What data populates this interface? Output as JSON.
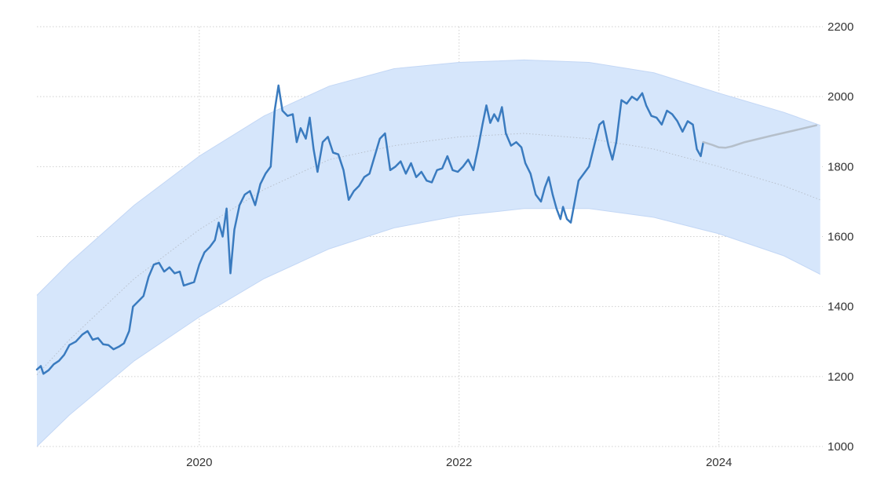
{
  "chart_data": {
    "type": "line",
    "title": "",
    "xlabel": "",
    "ylabel": "",
    "xlim": [
      2018.75,
      2024.8
    ],
    "ylim": [
      1000,
      2200
    ],
    "x_ticks": [
      2020,
      2022,
      2024
    ],
    "y_ticks": [
      1000,
      1200,
      1400,
      1600,
      1800,
      2000,
      2200
    ],
    "y_axis_side": "right",
    "grid": "dotted",
    "legend": "none",
    "colors": {
      "price_line": "#3a7bbf",
      "forecast_line": "#b5bfca",
      "trend_line": "#b8c0cc",
      "band_fill": "#d6e6fb",
      "band_edge": "#c3d7f5",
      "grid": "#d0d0d0"
    },
    "series": [
      {
        "role": "price",
        "points": [
          [
            2018.75,
            1220
          ],
          [
            2018.78,
            1230
          ],
          [
            2018.8,
            1208
          ],
          [
            2018.84,
            1218
          ],
          [
            2018.88,
            1235
          ],
          [
            2018.92,
            1245
          ],
          [
            2018.96,
            1262
          ],
          [
            2019.0,
            1290
          ],
          [
            2019.05,
            1300
          ],
          [
            2019.1,
            1320
          ],
          [
            2019.14,
            1330
          ],
          [
            2019.18,
            1305
          ],
          [
            2019.22,
            1310
          ],
          [
            2019.26,
            1292
          ],
          [
            2019.3,
            1290
          ],
          [
            2019.34,
            1278
          ],
          [
            2019.38,
            1285
          ],
          [
            2019.42,
            1295
          ],
          [
            2019.46,
            1330
          ],
          [
            2019.49,
            1400
          ],
          [
            2019.53,
            1415
          ],
          [
            2019.57,
            1430
          ],
          [
            2019.61,
            1485
          ],
          [
            2019.65,
            1520
          ],
          [
            2019.69,
            1525
          ],
          [
            2019.73,
            1500
          ],
          [
            2019.77,
            1512
          ],
          [
            2019.81,
            1495
          ],
          [
            2019.85,
            1500
          ],
          [
            2019.88,
            1460
          ],
          [
            2019.92,
            1465
          ],
          [
            2019.96,
            1470
          ],
          [
            2020.0,
            1520
          ],
          [
            2020.04,
            1555
          ],
          [
            2020.08,
            1570
          ],
          [
            2020.12,
            1590
          ],
          [
            2020.15,
            1640
          ],
          [
            2020.18,
            1600
          ],
          [
            2020.21,
            1680
          ],
          [
            2020.24,
            1495
          ],
          [
            2020.27,
            1620
          ],
          [
            2020.31,
            1690
          ],
          [
            2020.35,
            1720
          ],
          [
            2020.39,
            1730
          ],
          [
            2020.43,
            1690
          ],
          [
            2020.47,
            1750
          ],
          [
            2020.51,
            1780
          ],
          [
            2020.55,
            1800
          ],
          [
            2020.58,
            1960
          ],
          [
            2020.61,
            2032
          ],
          [
            2020.64,
            1960
          ],
          [
            2020.68,
            1945
          ],
          [
            2020.72,
            1950
          ],
          [
            2020.75,
            1870
          ],
          [
            2020.78,
            1910
          ],
          [
            2020.82,
            1880
          ],
          [
            2020.85,
            1940
          ],
          [
            2020.88,
            1850
          ],
          [
            2020.91,
            1785
          ],
          [
            2020.95,
            1870
          ],
          [
            2020.99,
            1885
          ],
          [
            2021.03,
            1840
          ],
          [
            2021.07,
            1835
          ],
          [
            2021.11,
            1790
          ],
          [
            2021.15,
            1705
          ],
          [
            2021.19,
            1730
          ],
          [
            2021.23,
            1745
          ],
          [
            2021.27,
            1770
          ],
          [
            2021.31,
            1780
          ],
          [
            2021.35,
            1830
          ],
          [
            2021.39,
            1880
          ],
          [
            2021.43,
            1895
          ],
          [
            2021.47,
            1790
          ],
          [
            2021.51,
            1800
          ],
          [
            2021.55,
            1815
          ],
          [
            2021.59,
            1780
          ],
          [
            2021.63,
            1810
          ],
          [
            2021.67,
            1770
          ],
          [
            2021.71,
            1785
          ],
          [
            2021.75,
            1760
          ],
          [
            2021.79,
            1755
          ],
          [
            2021.83,
            1790
          ],
          [
            2021.87,
            1795
          ],
          [
            2021.91,
            1830
          ],
          [
            2021.95,
            1790
          ],
          [
            2021.99,
            1785
          ],
          [
            2022.03,
            1800
          ],
          [
            2022.07,
            1820
          ],
          [
            2022.11,
            1790
          ],
          [
            2022.15,
            1860
          ],
          [
            2022.18,
            1920
          ],
          [
            2022.21,
            1975
          ],
          [
            2022.24,
            1925
          ],
          [
            2022.27,
            1950
          ],
          [
            2022.3,
            1930
          ],
          [
            2022.33,
            1970
          ],
          [
            2022.36,
            1895
          ],
          [
            2022.4,
            1860
          ],
          [
            2022.44,
            1870
          ],
          [
            2022.48,
            1855
          ],
          [
            2022.51,
            1810
          ],
          [
            2022.55,
            1780
          ],
          [
            2022.59,
            1720
          ],
          [
            2022.63,
            1700
          ],
          [
            2022.66,
            1740
          ],
          [
            2022.69,
            1770
          ],
          [
            2022.72,
            1720
          ],
          [
            2022.75,
            1680
          ],
          [
            2022.78,
            1650
          ],
          [
            2022.8,
            1685
          ],
          [
            2022.83,
            1650
          ],
          [
            2022.86,
            1640
          ],
          [
            2022.89,
            1700
          ],
          [
            2022.92,
            1760
          ],
          [
            2022.96,
            1780
          ],
          [
            2023.0,
            1800
          ],
          [
            2023.04,
            1860
          ],
          [
            2023.08,
            1920
          ],
          [
            2023.11,
            1930
          ],
          [
            2023.15,
            1860
          ],
          [
            2023.18,
            1820
          ],
          [
            2023.21,
            1870
          ],
          [
            2023.25,
            1990
          ],
          [
            2023.29,
            1980
          ],
          [
            2023.33,
            2000
          ],
          [
            2023.37,
            1990
          ],
          [
            2023.41,
            2010
          ],
          [
            2023.44,
            1975
          ],
          [
            2023.48,
            1945
          ],
          [
            2023.52,
            1940
          ],
          [
            2023.56,
            1920
          ],
          [
            2023.6,
            1960
          ],
          [
            2023.64,
            1950
          ],
          [
            2023.68,
            1930
          ],
          [
            2023.72,
            1900
          ],
          [
            2023.76,
            1930
          ],
          [
            2023.8,
            1920
          ],
          [
            2023.83,
            1850
          ],
          [
            2023.86,
            1830
          ],
          [
            2023.88,
            1870
          ]
        ]
      },
      {
        "role": "forecast",
        "points": [
          [
            2023.88,
            1870
          ],
          [
            2023.95,
            1862
          ],
          [
            2024.0,
            1855
          ],
          [
            2024.05,
            1854
          ],
          [
            2024.1,
            1858
          ],
          [
            2024.2,
            1870
          ],
          [
            2024.4,
            1888
          ],
          [
            2024.6,
            1905
          ],
          [
            2024.75,
            1918
          ]
        ]
      }
    ],
    "trend_band": {
      "center": [
        [
          2018.75,
          1205
        ],
        [
          2019.0,
          1305
        ],
        [
          2019.5,
          1480
        ],
        [
          2020.0,
          1620
        ],
        [
          2020.5,
          1735
        ],
        [
          2021.0,
          1820
        ],
        [
          2021.5,
          1860
        ],
        [
          2022.0,
          1885
        ],
        [
          2022.5,
          1895
        ],
        [
          2023.0,
          1880
        ],
        [
          2023.5,
          1850
        ],
        [
          2024.0,
          1800
        ],
        [
          2024.5,
          1745
        ],
        [
          2024.78,
          1705
        ]
      ],
      "upper": [
        [
          2018.75,
          1432
        ],
        [
          2019.0,
          1525
        ],
        [
          2019.5,
          1690
        ],
        [
          2020.0,
          1830
        ],
        [
          2020.5,
          1945
        ],
        [
          2021.0,
          2030
        ],
        [
          2021.5,
          2080
        ],
        [
          2022.0,
          2098
        ],
        [
          2022.5,
          2105
        ],
        [
          2023.0,
          2098
        ],
        [
          2023.5,
          2068
        ],
        [
          2024.0,
          2010
        ],
        [
          2024.5,
          1955
        ],
        [
          2024.78,
          1918
        ]
      ],
      "lower": [
        [
          2018.75,
          1000
        ],
        [
          2019.0,
          1090
        ],
        [
          2019.5,
          1245
        ],
        [
          2020.0,
          1370
        ],
        [
          2020.5,
          1480
        ],
        [
          2021.0,
          1565
        ],
        [
          2021.5,
          1625
        ],
        [
          2022.0,
          1660
        ],
        [
          2022.5,
          1680
        ],
        [
          2023.0,
          1680
        ],
        [
          2023.5,
          1655
        ],
        [
          2024.0,
          1608
        ],
        [
          2024.5,
          1545
        ],
        [
          2024.78,
          1492
        ]
      ]
    }
  }
}
